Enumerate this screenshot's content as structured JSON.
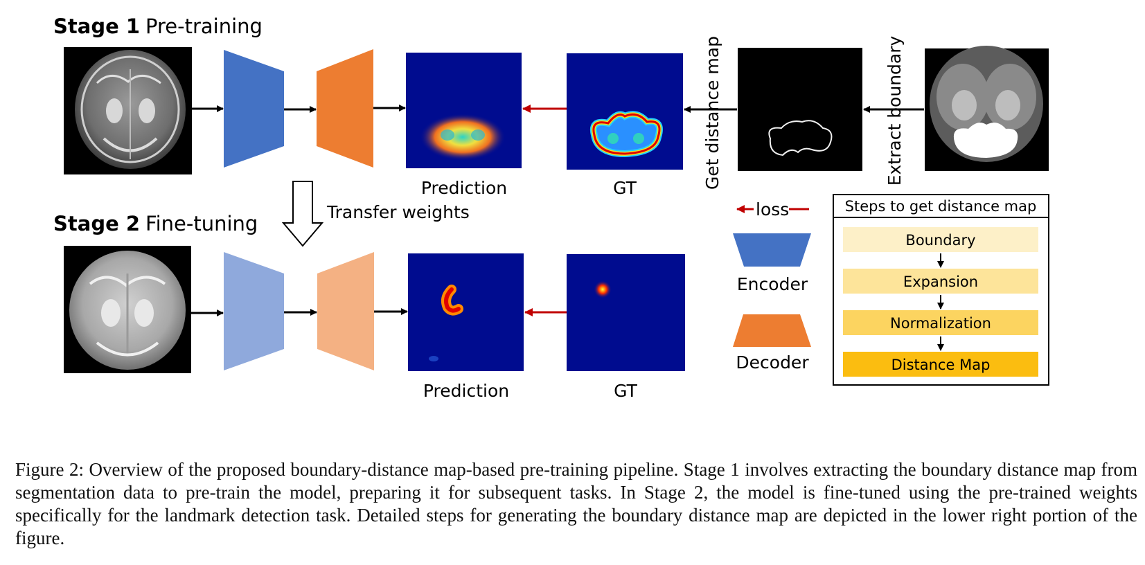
{
  "stage1": {
    "bold": "Stage 1",
    "rest": "Pre-training"
  },
  "stage2": {
    "bold": "Stage 2",
    "rest": "Fine-tuning"
  },
  "labels": {
    "prediction_top": "Prediction",
    "gt_top": "GT",
    "prediction_bottom": "Prediction",
    "gt_bottom": "GT",
    "get_distance_map": "Get distance map",
    "extract_boundary": "Extract boundary",
    "transfer_weights": "Transfer weights"
  },
  "legend": {
    "loss": "loss",
    "encoder": "Encoder",
    "decoder": "Decoder"
  },
  "steps": {
    "title": "Steps to get distance map",
    "items": [
      "Boundary",
      "Expansion",
      "Normalization",
      "Distance Map"
    ],
    "colors": [
      "#fdf0c8",
      "#fde49a",
      "#fcd460",
      "#fbbd10"
    ]
  },
  "colors": {
    "encoder": "#4472c4",
    "decoder": "#ed7d31",
    "encoder_light": "#8fa9dc",
    "decoder_light": "#f4b183",
    "loss_arrow": "#c00000",
    "heatmap_bg": "#000c8f"
  },
  "caption": "Figure 2: Overview of the proposed boundary-distance map-based pre-training pipeline. Stage 1 involves extracting the boundary distance map from segmentation data to pre-train the model, preparing it for subsequent tasks. In Stage 2, the model is fine-tuned using the pre-trained weights specifically for the landmark detection task. Detailed steps for generating the boundary distance map are depicted in the lower right portion of the figure."
}
